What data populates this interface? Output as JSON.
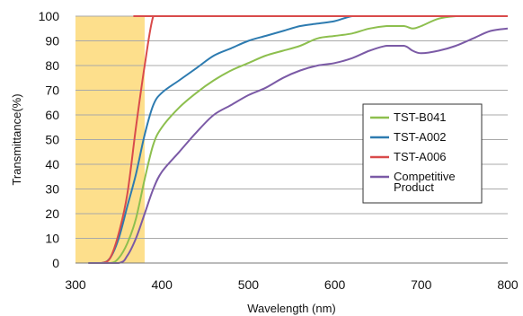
{
  "chart_data": {
    "type": "line",
    "xlabel": "Wavelength (nm)",
    "ylabel": "Transmittance(%)",
    "xlim": [
      300,
      800
    ],
    "ylim": [
      0,
      100
    ],
    "xticks": [
      "300",
      "400",
      "500",
      "600",
      "700",
      "800"
    ],
    "yticks": [
      "0",
      "10",
      "20",
      "30",
      "40",
      "50",
      "60",
      "70",
      "80",
      "90",
      "100"
    ],
    "grid": "horizontal",
    "legend_position": "right",
    "highlight_band": {
      "from": 300,
      "to": 380,
      "color": "#fddf8c"
    },
    "series": [
      {
        "name": "TST-B041",
        "legend_lines": [
          "TST-B041"
        ],
        "color": "#8dbf4e",
        "x": [
          315,
          340,
          350,
          360,
          370,
          380,
          390,
          400,
          420,
          440,
          460,
          480,
          500,
          520,
          540,
          560,
          580,
          600,
          620,
          640,
          660,
          680,
          690,
          700,
          720,
          740,
          760,
          800
        ],
        "y": [
          0,
          0,
          2,
          8,
          18,
          34,
          48,
          55,
          63,
          69,
          74,
          78,
          81,
          84,
          86,
          88,
          91,
          92,
          93,
          95,
          96,
          96,
          95,
          96,
          99,
          100,
          100,
          100
        ]
      },
      {
        "name": "TST-A002",
        "legend_lines": [
          "TST-A002"
        ],
        "color": "#2d7bb0",
        "x": [
          315,
          330,
          340,
          350,
          360,
          370,
          380,
          390,
          400,
          420,
          440,
          460,
          480,
          500,
          520,
          540,
          560,
          580,
          600,
          620,
          640,
          800
        ],
        "y": [
          0,
          0,
          2,
          10,
          23,
          36,
          52,
          64,
          69,
          74,
          79,
          84,
          87,
          90,
          92,
          94,
          96,
          97,
          98,
          100,
          100,
          100
        ]
      },
      {
        "name": "TST-A006",
        "legend_lines": [
          "TST-A006"
        ],
        "color": "#d94b4b",
        "x": [
          315,
          330,
          340,
          350,
          360,
          370,
          380,
          390,
          400,
          800
        ],
        "y": [
          0,
          0,
          2,
          12,
          28,
          55,
          80,
          100,
          100,
          100
        ]
      },
      {
        "name": "Competitive Product",
        "legend_lines": [
          "Competitive",
          "Product"
        ],
        "color": "#7b5aa6",
        "x": [
          315,
          350,
          360,
          370,
          380,
          390,
          400,
          420,
          440,
          460,
          480,
          500,
          520,
          540,
          560,
          580,
          600,
          620,
          640,
          660,
          680,
          690,
          700,
          720,
          740,
          760,
          780,
          800
        ],
        "y": [
          0,
          0,
          3,
          10,
          20,
          30,
          37,
          45,
          53,
          60,
          64,
          68,
          71,
          75,
          78,
          80,
          81,
          83,
          86,
          88,
          88,
          86,
          85,
          86,
          88,
          91,
          94,
          95
        ]
      }
    ]
  }
}
